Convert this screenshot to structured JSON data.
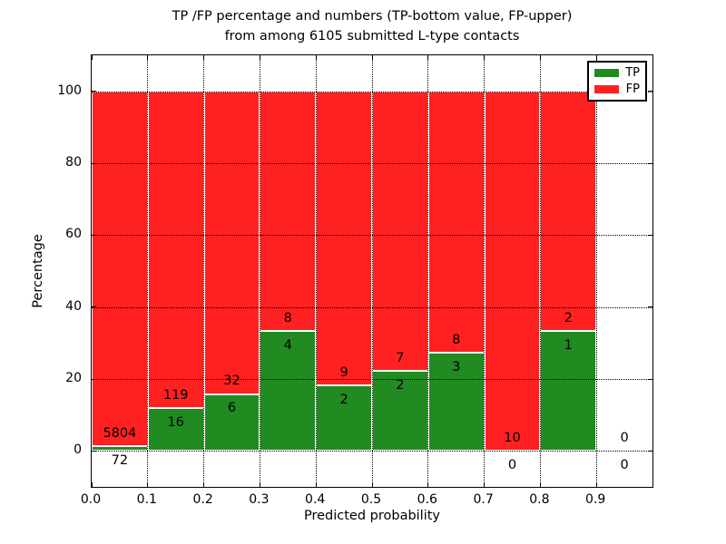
{
  "title": {
    "line1": "TP /FP percentage and numbers (TP-bottom value, FP-upper)",
    "line2": "from among 6105 submitted L-type contacts"
  },
  "axis": {
    "xlabel": "Predicted probability",
    "ylabel": "Percentage",
    "x_tick_labels": [
      "0.0",
      "0.1",
      "0.2",
      "0.3",
      "0.4",
      "0.5",
      "0.6",
      "0.7",
      "0.8",
      "0.9"
    ],
    "x_tick_values": [
      0.0,
      0.1,
      0.2,
      0.3,
      0.4,
      0.5,
      0.6,
      0.7,
      0.8,
      0.9
    ],
    "y_tick_labels": [
      "0",
      "20",
      "40",
      "60",
      "80",
      "100"
    ],
    "y_tick_values": [
      0,
      20,
      40,
      60,
      80,
      100
    ],
    "xlim": [
      0.0,
      1.0
    ],
    "ylim": [
      -10,
      110
    ],
    "grid": "dotted, drawn above bars"
  },
  "legend": {
    "items": [
      {
        "label": "TP",
        "color": "#218a21"
      },
      {
        "label": "FP",
        "color": "#ff2121"
      }
    ],
    "position": "upper right"
  },
  "colors": {
    "tp_green": "#218a21",
    "fp_red": "#ff2121",
    "bar_edge": "#ffffff",
    "text": "#000000"
  },
  "chart_data": {
    "type": "bar",
    "stacked": true,
    "normalized_to_percent": true,
    "title": "TP /FP percentage and numbers (TP-bottom value, FP-upper) from among 6105 submitted L-type contacts",
    "xlabel": "Predicted probability",
    "ylabel": "Percentage",
    "total_contacts": 6105,
    "bin_width": 0.1,
    "bin_starts": [
      0.0,
      0.1,
      0.2,
      0.3,
      0.4,
      0.5,
      0.6,
      0.7,
      0.8,
      0.9
    ],
    "series": [
      {
        "name": "TP",
        "color": "#218a21",
        "counts": [
          72,
          16,
          6,
          4,
          2,
          2,
          3,
          0,
          1,
          0
        ]
      },
      {
        "name": "FP",
        "color": "#ff2121",
        "counts": [
          5804,
          119,
          32,
          8,
          9,
          7,
          8,
          10,
          2,
          0
        ]
      }
    ],
    "tp_percent_of_bin": [
      1.23,
      11.85,
      15.79,
      33.33,
      18.18,
      22.22,
      27.27,
      0.0,
      33.33,
      null
    ],
    "fp_percent_of_bin": [
      98.77,
      88.15,
      84.21,
      66.67,
      81.82,
      77.78,
      72.73,
      100.0,
      66.67,
      null
    ],
    "note": "bin 0.9-1.0 has zero contacts; no bar drawn, labels 0/0 shown",
    "xlim": [
      0.0,
      1.0
    ],
    "ylim": [
      -10,
      110
    ],
    "legend_position": "upper right"
  }
}
